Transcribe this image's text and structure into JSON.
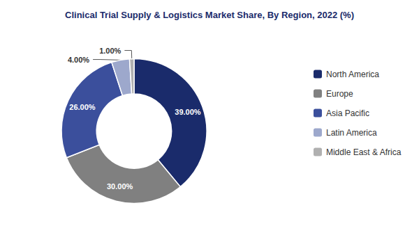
{
  "chart_data": {
    "type": "pie",
    "title": "Clinical Trial Supply & Logistics Market Share, By Region, 2022 (%)",
    "categories": [
      "North America",
      "Europe",
      "Asia Pacific",
      "Latin America",
      "Middle East & Africa"
    ],
    "values": [
      39,
      30,
      26,
      4,
      1
    ],
    "value_labels": [
      "39.00%",
      "30.00%",
      "26.00%",
      "4.00%",
      "1.00%"
    ],
    "colors": [
      "#1a2b6b",
      "#808080",
      "#3b4f9c",
      "#9da8cc",
      "#b0b0b0"
    ],
    "data_labels": true,
    "legend": "right"
  }
}
